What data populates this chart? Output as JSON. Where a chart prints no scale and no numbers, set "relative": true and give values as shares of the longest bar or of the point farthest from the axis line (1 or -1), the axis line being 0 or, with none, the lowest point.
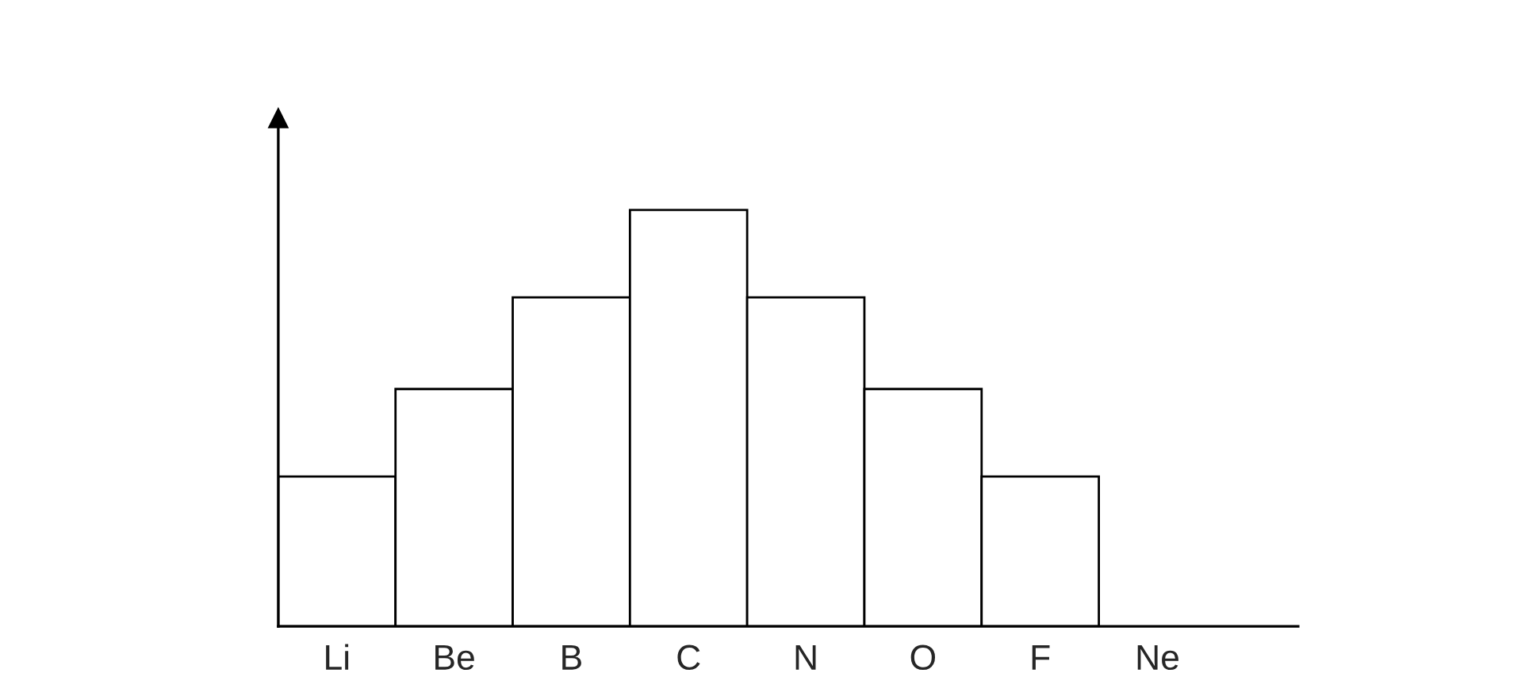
{
  "chart_data": {
    "type": "bar",
    "relative": true,
    "categories": [
      "Li",
      "Be",
      "B",
      "C",
      "N",
      "O",
      "F",
      "Ne"
    ],
    "values": [
      0.36,
      0.57,
      0.79,
      1,
      0.79,
      0.57,
      0.36,
      0
    ],
    "color": "#ffffff",
    "grid": false,
    "legend": false
  }
}
